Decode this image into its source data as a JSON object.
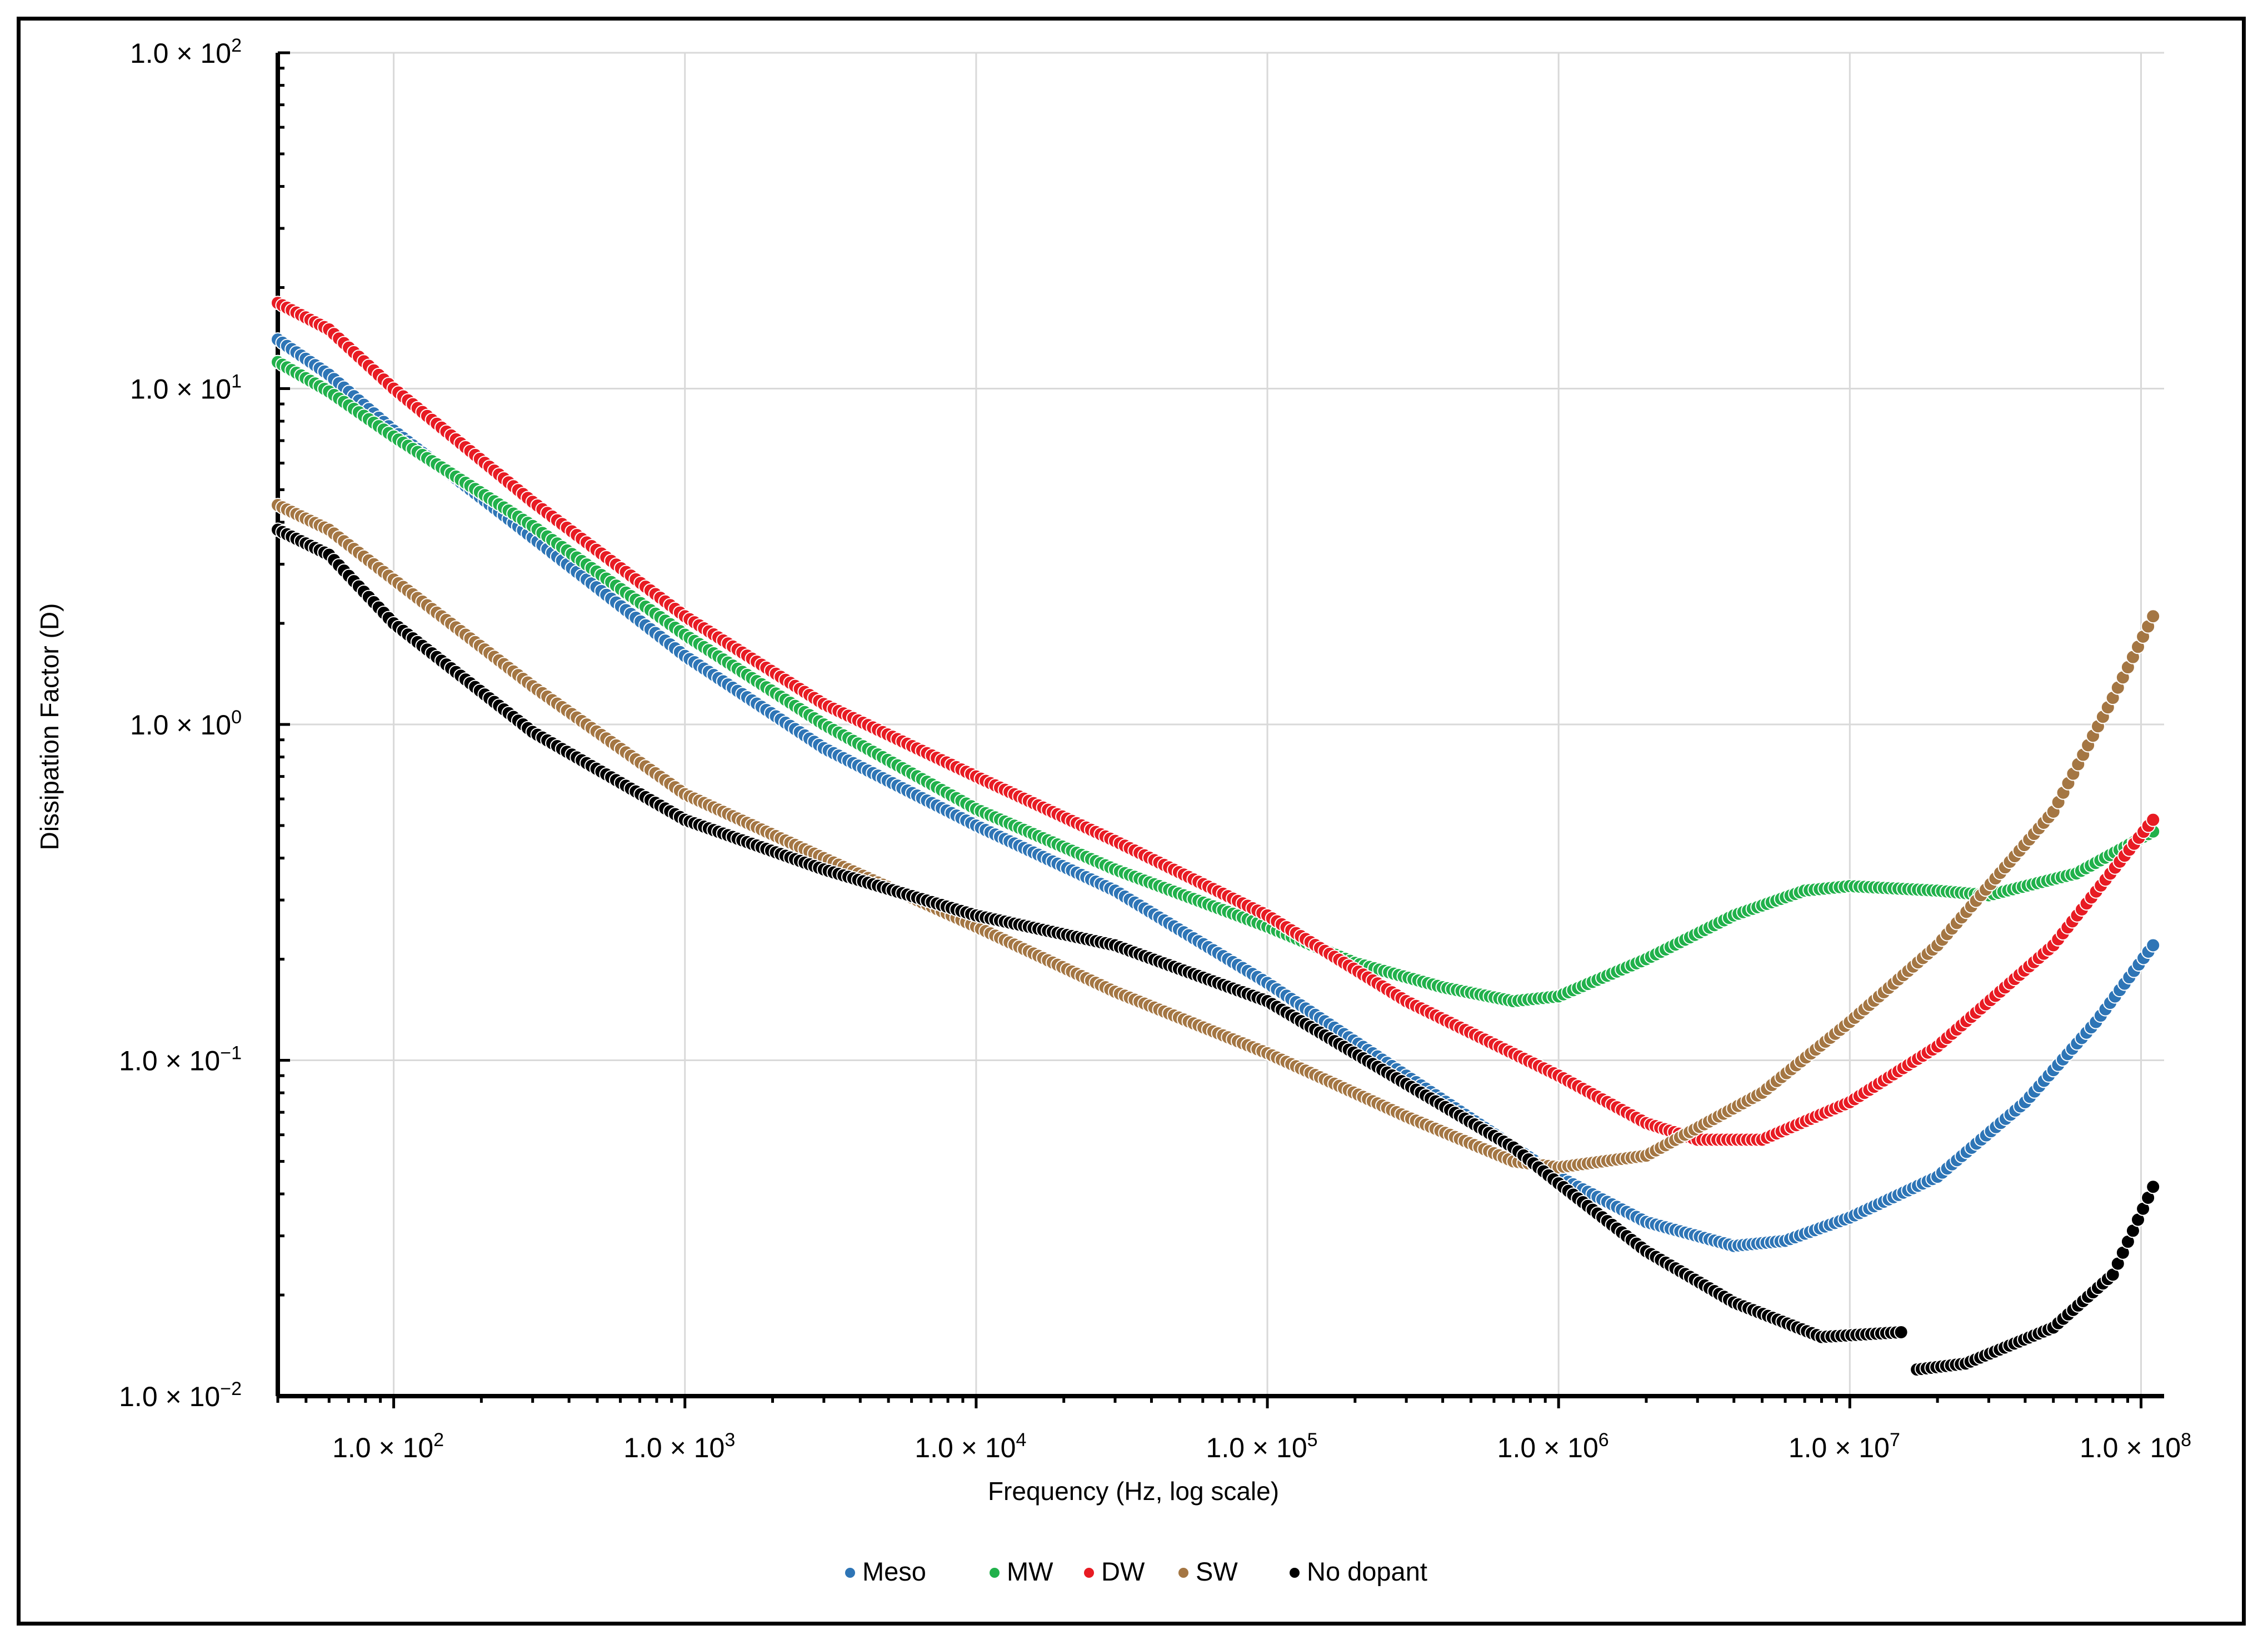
{
  "chart_data": {
    "type": "scatter",
    "title": "",
    "xlabel": "Frequency (Hz, log scale)",
    "ylabel": "Dissipation Factor (D)",
    "x_scale": "log",
    "y_scale": "log",
    "xlim": [
      40,
      120000000
    ],
    "ylim": [
      0.01,
      100
    ],
    "grid": true,
    "legend_position": "bottom-center",
    "x_ticks": [
      {
        "value": 100,
        "mant": "1.0",
        "exp": "2"
      },
      {
        "value": 1000,
        "mant": "1.0",
        "exp": "3"
      },
      {
        "value": 10000,
        "mant": "1.0",
        "exp": "4"
      },
      {
        "value": 100000,
        "mant": "1.0",
        "exp": "5"
      },
      {
        "value": 1000000,
        "mant": "1.0",
        "exp": "6"
      },
      {
        "value": 10000000,
        "mant": "1.0",
        "exp": "7"
      },
      {
        "value": 100000000,
        "mant": "1.0",
        "exp": "8"
      }
    ],
    "y_ticks": [
      {
        "value": 100,
        "mant": "1.0",
        "exp": "2"
      },
      {
        "value": 10,
        "mant": "1.0",
        "exp": "1"
      },
      {
        "value": 1,
        "mant": "1.0",
        "exp": "0"
      },
      {
        "value": 0.1,
        "mant": "1.0",
        "exp": "−1"
      },
      {
        "value": 0.01,
        "mant": "1.0",
        "exp": "−2"
      }
    ],
    "tick_mult": "×",
    "tick_base": "10",
    "series": [
      {
        "name": "Meso",
        "color": "#2E75B6",
        "points": [
          [
            40,
            14
          ],
          [
            60,
            11
          ],
          [
            100,
            7.5
          ],
          [
            300,
            3.6
          ],
          [
            1000,
            1.6
          ],
          [
            3000,
            0.85
          ],
          [
            10000,
            0.5
          ],
          [
            30000,
            0.32
          ],
          [
            100000,
            0.17
          ],
          [
            300000,
            0.09
          ],
          [
            1000000,
            0.045
          ],
          [
            2000000,
            0.033
          ],
          [
            4000000,
            0.028
          ],
          [
            6000000,
            0.029
          ],
          [
            10000000,
            0.034
          ],
          [
            20000000,
            0.045
          ],
          [
            40000000,
            0.075
          ],
          [
            70000000,
            0.13
          ],
          [
            110000000,
            0.22
          ]
        ]
      },
      {
        "name": "MW",
        "color": "#21B14B",
        "points": [
          [
            40,
            12
          ],
          [
            60,
            9.8
          ],
          [
            100,
            7.2
          ],
          [
            300,
            3.9
          ],
          [
            1000,
            1.85
          ],
          [
            3000,
            1.0
          ],
          [
            10000,
            0.56
          ],
          [
            30000,
            0.37
          ],
          [
            100000,
            0.25
          ],
          [
            200000,
            0.195
          ],
          [
            400000,
            0.165
          ],
          [
            700000,
            0.15
          ],
          [
            1000000,
            0.155
          ],
          [
            2000000,
            0.2
          ],
          [
            4000000,
            0.27
          ],
          [
            7000000,
            0.32
          ],
          [
            10000000,
            0.33
          ],
          [
            20000000,
            0.32
          ],
          [
            30000000,
            0.31
          ],
          [
            60000000,
            0.36
          ],
          [
            110000000,
            0.48
          ]
        ]
      },
      {
        "name": "DW",
        "color": "#E81B23",
        "points": [
          [
            40,
            18
          ],
          [
            60,
            15
          ],
          [
            100,
            10
          ],
          [
            300,
            4.6
          ],
          [
            1000,
            2.1
          ],
          [
            3000,
            1.15
          ],
          [
            10000,
            0.7
          ],
          [
            30000,
            0.45
          ],
          [
            100000,
            0.27
          ],
          [
            300000,
            0.15
          ],
          [
            1000000,
            0.09
          ],
          [
            2000000,
            0.065
          ],
          [
            3000000,
            0.058
          ],
          [
            5000000,
            0.058
          ],
          [
            10000000,
            0.075
          ],
          [
            20000000,
            0.11
          ],
          [
            50000000,
            0.22
          ],
          [
            110000000,
            0.52
          ]
        ]
      },
      {
        "name": "SW",
        "color": "#A47643",
        "points": [
          [
            40,
            4.5
          ],
          [
            60,
            3.8
          ],
          [
            100,
            2.7
          ],
          [
            300,
            1.3
          ],
          [
            1000,
            0.62
          ],
          [
            3000,
            0.4
          ],
          [
            10000,
            0.25
          ],
          [
            30000,
            0.16
          ],
          [
            100000,
            0.105
          ],
          [
            300000,
            0.068
          ],
          [
            700000,
            0.05
          ],
          [
            1000000,
            0.048
          ],
          [
            2000000,
            0.052
          ],
          [
            5000000,
            0.08
          ],
          [
            10000000,
            0.13
          ],
          [
            20000000,
            0.22
          ],
          [
            50000000,
            0.55
          ],
          [
            80000000,
            1.2
          ],
          [
            110000000,
            2.1
          ]
        ]
      },
      {
        "name": "No dopant",
        "color": "#000000",
        "points": [
          [
            40,
            3.8
          ],
          [
            60,
            3.2
          ],
          [
            100,
            2.0
          ],
          [
            300,
            0.95
          ],
          [
            1000,
            0.52
          ],
          [
            3000,
            0.37
          ],
          [
            10000,
            0.27
          ],
          [
            30000,
            0.22
          ],
          [
            100000,
            0.15
          ],
          [
            300000,
            0.085
          ],
          [
            700000,
            0.055
          ],
          [
            1000000,
            0.043
          ],
          [
            2000000,
            0.027
          ],
          [
            4000000,
            0.019
          ],
          [
            8000000,
            0.015
          ],
          [
            15000000,
            0.0155
          ],
          [
            null,
            null
          ],
          [
            17000000,
            0.012
          ],
          [
            25000000,
            0.0125
          ],
          [
            50000000,
            0.016
          ],
          [
            80000000,
            0.023
          ],
          [
            110000000,
            0.042
          ]
        ]
      }
    ]
  }
}
